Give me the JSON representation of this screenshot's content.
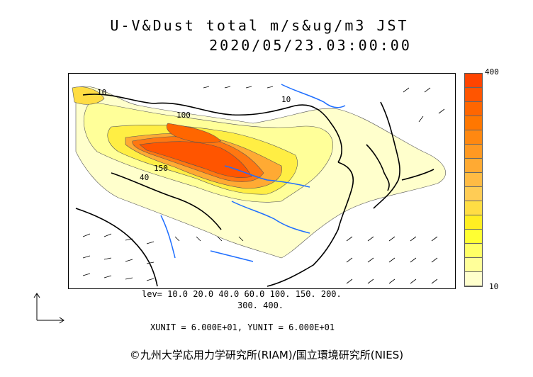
{
  "title_line1": "U-V&Dust total m/s&ug/m3 JST",
  "title_line2": "2020/05/23.03:00:00",
  "legend": {
    "max_label": "400",
    "min_label": "10",
    "colors": [
      "#ffffcc",
      "#ffff99",
      "#ffff66",
      "#ffff33",
      "#ffee22",
      "#ffdd44",
      "#ffcc55",
      "#ffbb44",
      "#ffaa33",
      "#ff9922",
      "#ff8811",
      "#ff7700",
      "#ff6600",
      "#ff5500",
      "#ff4400"
    ]
  },
  "contour_labels": [
    "100",
    "150",
    "40",
    "10",
    "10"
  ],
  "levels_line1": "lev= 10.0 20.0 40.0 60.0 100. 150. 200.",
  "levels_line2": "300. 400.",
  "units": "XUNIT = 6.000E+01, YUNIT = 6.000E+01",
  "copyright": "©九州大学応用力学研究所(RIAM)/国立環境研究所(NIES)"
}
